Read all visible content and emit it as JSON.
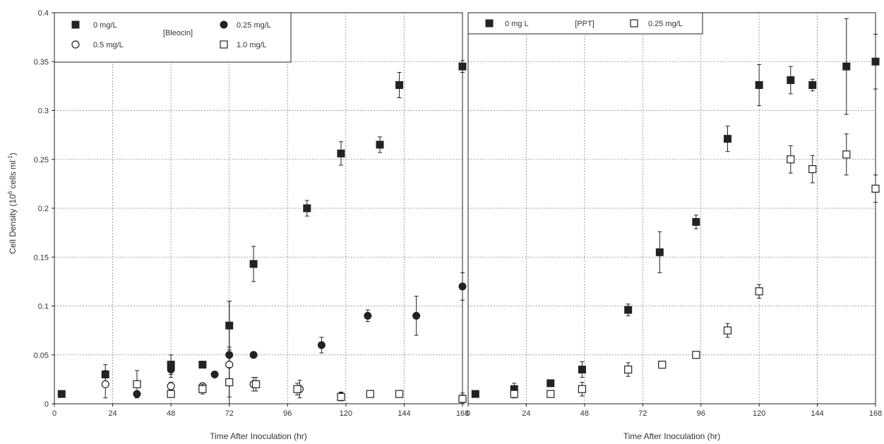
{
  "figure": {
    "ylabel": "Cell Density (10",
    "ylabel_sup1": "6",
    "ylabel_mid": " cells ml",
    "ylabel_sup2": "-1",
    "ylabel_end": ")"
  },
  "chart_data": [
    {
      "type": "scatter",
      "panel": "left",
      "xlabel": "Time After Inoculation (hr)",
      "xlim": [
        0,
        168
      ],
      "ylim": [
        0,
        0.4
      ],
      "xticks": [
        0,
        24,
        48,
        72,
        96,
        120,
        144,
        168
      ],
      "xtick_labels": [
        "0",
        "24",
        "48",
        "72",
        "96",
        "120",
        "144",
        "168"
      ],
      "yticks": [
        0,
        0.05,
        0.1,
        0.15,
        0.2,
        0.25,
        0.3,
        0.35,
        0.4
      ],
      "ytick_labels": [
        "0",
        "0.05",
        "0.1",
        "0.15",
        "0.2",
        "0.25",
        "0.3",
        "0.35",
        "0.4"
      ],
      "grid": true,
      "legend_title": "[Bleocin]",
      "legend_position": "top-left",
      "series": [
        {
          "name": "0 mg/L",
          "marker": "square-filled",
          "points": [
            [
              3,
              0.01,
              0
            ],
            [
              21,
              0.03,
              0.01
            ],
            [
              48,
              0.04,
              0.01
            ],
            [
              61,
              0.04,
              0
            ],
            [
              72,
              0.08,
              0.025
            ],
            [
              82,
              0.143,
              0.018
            ],
            [
              104,
              0.2,
              0.008
            ],
            [
              118,
              0.256,
              0.012
            ],
            [
              134,
              0.265,
              0.008
            ],
            [
              142,
              0.326,
              0.013
            ],
            [
              168,
              0.345,
              0.006
            ]
          ]
        },
        {
          "name": "0.25 mg/L",
          "marker": "circle-filled",
          "points": [
            [
              34,
              0.01,
              0
            ],
            [
              48,
              0.035,
              0.008
            ],
            [
              66,
              0.03,
              0
            ],
            [
              72,
              0.05,
              0.008
            ],
            [
              82,
              0.05,
              0
            ],
            [
              110,
              0.06,
              0.008
            ],
            [
              129,
              0.09,
              0.006
            ],
            [
              149,
              0.09,
              0.02
            ],
            [
              168,
              0.12,
              0.014
            ]
          ]
        },
        {
          "name": "0.5 mg/L",
          "marker": "circle-open",
          "points": [
            [
              21,
              0.02,
              0.014
            ],
            [
              48,
              0.018,
              0.004
            ],
            [
              61,
              0.018,
              0.003
            ],
            [
              72,
              0.04,
              0.065
            ],
            [
              82,
              0.02,
              0.007
            ],
            [
              101,
              0.015,
              0.009
            ],
            [
              118,
              0.008,
              0.004
            ],
            [
              168,
              0.005,
              0.006
            ]
          ]
        },
        {
          "name": "1.0 mg/L",
          "marker": "square-open",
          "points": [
            [
              34,
              0.02,
              0.014
            ],
            [
              48,
              0.01,
              0.003
            ],
            [
              61,
              0.015,
              0.005
            ],
            [
              72,
              0.022,
              0.015
            ],
            [
              83,
              0.02,
              0.007
            ],
            [
              100,
              0.015,
              0.006
            ],
            [
              118,
              0.007,
              0.004
            ],
            [
              130,
              0.01,
              0.002
            ],
            [
              142,
              0.01,
              0.002
            ],
            [
              168,
              0.005,
              0.004
            ]
          ]
        }
      ]
    },
    {
      "type": "scatter",
      "panel": "right",
      "xlabel": "Time After Inoculation (hr)",
      "xlim": [
        0,
        168
      ],
      "ylim": [
        0,
        0.4
      ],
      "xticks": [
        0,
        24,
        48,
        72,
        96,
        120,
        144,
        168
      ],
      "xtick_labels": [
        "0",
        "24",
        "48",
        "72",
        "96",
        "120",
        "144",
        "168"
      ],
      "grid": true,
      "legend_title": "[PPT]",
      "legend_position": "top-left",
      "series": [
        {
          "name": "0 mg L",
          "marker": "square-filled",
          "points": [
            [
              3,
              0.01,
              0
            ],
            [
              19,
              0.015,
              0.006
            ],
            [
              34,
              0.021,
              0
            ],
            [
              47,
              0.035,
              0.008
            ],
            [
              66,
              0.096,
              0.006
            ],
            [
              79,
              0.155,
              0.021
            ],
            [
              94,
              0.186,
              0.007
            ],
            [
              107,
              0.271,
              0.013
            ],
            [
              120,
              0.326,
              0.021
            ],
            [
              133,
              0.331,
              0.014
            ],
            [
              142,
              0.326,
              0.006
            ],
            [
              156,
              0.345,
              0.049
            ],
            [
              168,
              0.35,
              0.028
            ]
          ]
        },
        {
          "name": "0.25 mg/L",
          "marker": "square-open",
          "points": [
            [
              19,
              0.01,
              0.004
            ],
            [
              34,
              0.01,
              0
            ],
            [
              47,
              0.015,
              0.007
            ],
            [
              66,
              0.035,
              0.007
            ],
            [
              80,
              0.04,
              0
            ],
            [
              94,
              0.05,
              0
            ],
            [
              107,
              0.075,
              0.007
            ],
            [
              120,
              0.115,
              0.007
            ],
            [
              133,
              0.25,
              0.014
            ],
            [
              142,
              0.24,
              0.014
            ],
            [
              156,
              0.255,
              0.021
            ],
            [
              168,
              0.22,
              0.014
            ]
          ]
        }
      ]
    }
  ]
}
